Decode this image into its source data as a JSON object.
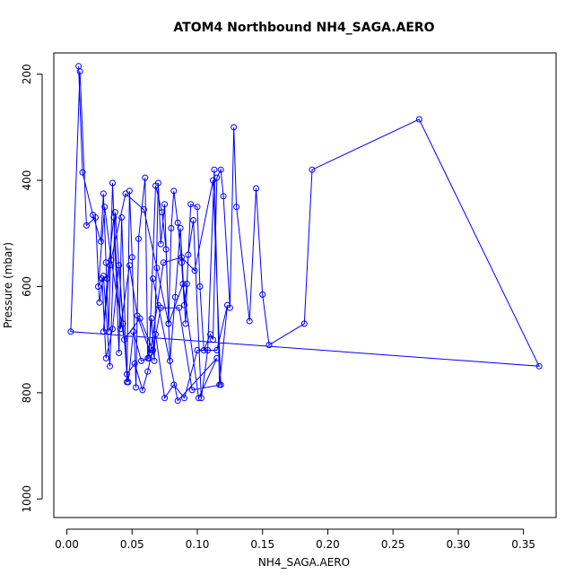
{
  "chart_data": {
    "type": "line",
    "title": "ATOM4 Northbound NH4_SAGA.AERO",
    "xlabel": "NH4_SAGA.AERO",
    "ylabel": "Pressure (mbar)",
    "xlim": [
      -0.01,
      0.375
    ],
    "ylim": [
      1035,
      160
    ],
    "y_reversed": true,
    "x_ticks": [
      0.0,
      0.05,
      0.1,
      0.15,
      0.2,
      0.25,
      0.3,
      0.35
    ],
    "x_tick_labels": [
      "0.00",
      "0.05",
      "0.10",
      "0.15",
      "0.20",
      "0.25",
      "0.30",
      "0.35"
    ],
    "y_ticks": [
      200,
      400,
      600,
      800,
      1000
    ],
    "y_tick_labels": [
      "200",
      "400",
      "600",
      "800",
      "1000"
    ],
    "grid": false,
    "color": "#0000ff",
    "series": [
      {
        "x": [
          0.009,
          0.012,
          0.02,
          0.026,
          0.028,
          0.03,
          0.032,
          0.035,
          0.04,
          0.042,
          0.046,
          0.048,
          0.05,
          0.053,
          0.055,
          0.06,
          0.062,
          0.065,
          0.067,
          0.07,
          0.072,
          0.075,
          0.078,
          0.08,
          0.082,
          0.085,
          0.088,
          0.09,
          0.092,
          0.095,
          0.1,
          0.102,
          0.105,
          0.11,
          0.112,
          0.115,
          0.118,
          0.12,
          0.125,
          0.128,
          0.13,
          0.14,
          0.145,
          0.15,
          0.155,
          0.182,
          0.188,
          0.27,
          0.362,
          0.003,
          0.01,
          0.015,
          0.022,
          0.025,
          0.028,
          0.033,
          0.037,
          0.043,
          0.047,
          0.051,
          0.057,
          0.063,
          0.068,
          0.073,
          0.076,
          0.079,
          0.083,
          0.087,
          0.091,
          0.093,
          0.097,
          0.103,
          0.108,
          0.113,
          0.117,
          0.123,
          0.115,
          0.1,
          0.09,
          0.082,
          0.075,
          0.068,
          0.062,
          0.058,
          0.052,
          0.046,
          0.04,
          0.035,
          0.03,
          0.027,
          0.024,
          0.029,
          0.034,
          0.044,
          0.056,
          0.066,
          0.072,
          0.086,
          0.096,
          0.118,
          0.112,
          0.098,
          0.088,
          0.074,
          0.064,
          0.054,
          0.048,
          0.041,
          0.036,
          0.031,
          0.028,
          0.033,
          0.045,
          0.059,
          0.069,
          0.078,
          0.089,
          0.101,
          0.115,
          0.085,
          0.07,
          0.066
        ],
        "y": [
          185,
          385,
          465,
          515,
          425,
          555,
          685,
          405,
          725,
          470,
          780,
          420,
          545,
          790,
          510,
          395,
          735,
          660,
          740,
          405,
          520,
          445,
          670,
          490,
          420,
          480,
          555,
          635,
          595,
          445,
          450,
          600,
          720,
          690,
          700,
          395,
          380,
          430,
          640,
          300,
          450,
          665,
          415,
          615,
          710,
          670,
          380,
          285,
          750,
          685,
          195,
          485,
          470,
          630,
          580,
          750,
          460,
          670,
          780,
          685,
          740,
          735,
          410,
          460,
          530,
          740,
          620,
          490,
          670,
          540,
          475,
          810,
          720,
          380,
          785,
          635,
          720,
          720,
          810,
          785,
          810,
          690,
          760,
          795,
          745,
          765,
          560,
          680,
          735,
          585,
          600,
          450,
          550,
          700,
          660,
          720,
          640,
          640,
          795,
          785,
          400,
          570,
          545,
          555,
          725,
          655,
          560,
          680,
          470,
          585,
          685,
          560,
          425,
          455,
          565,
          670,
          595,
          810,
          735,
          815,
          635,
          585
        ]
      }
    ]
  }
}
